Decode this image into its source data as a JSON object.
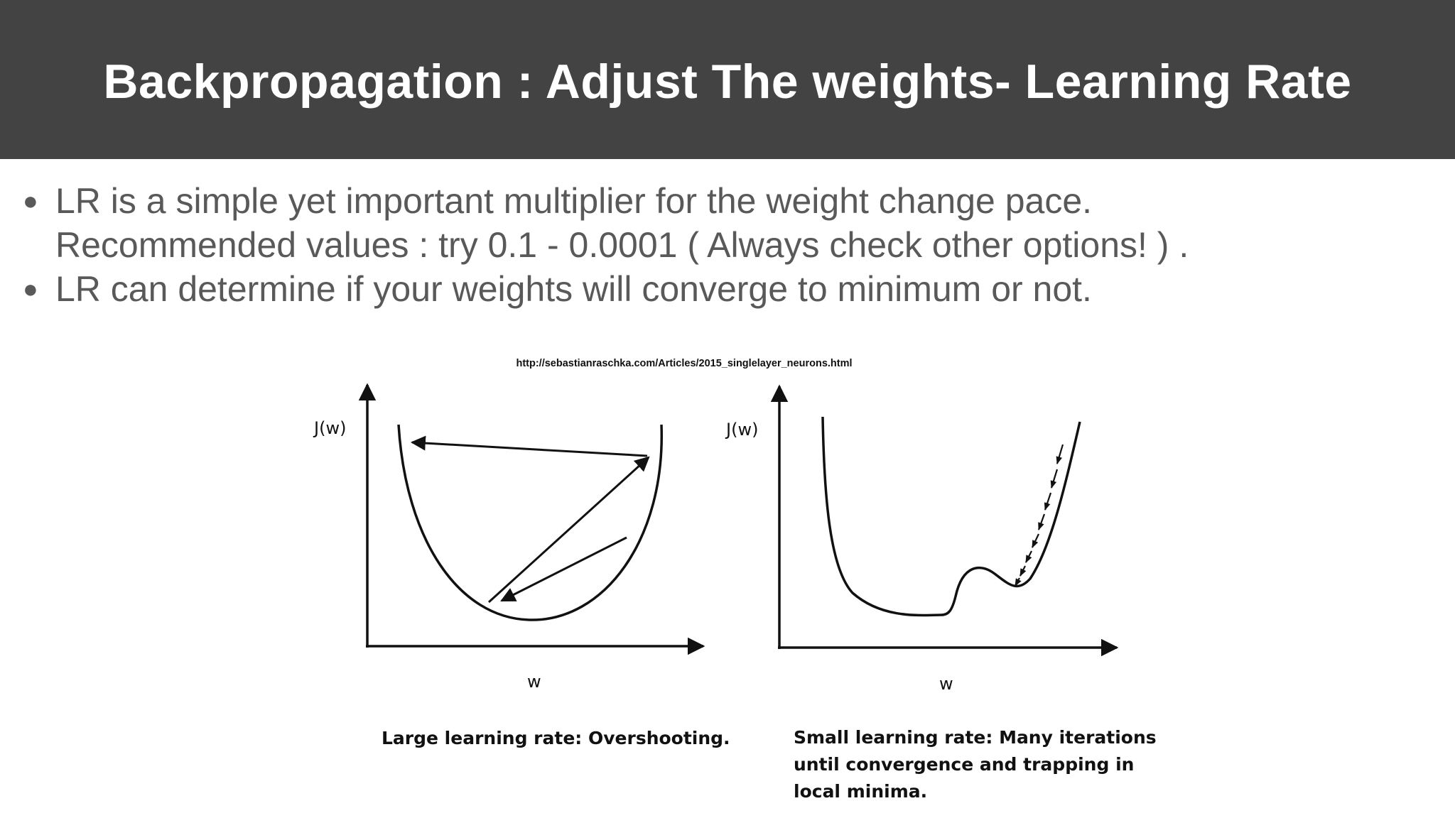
{
  "slide": {
    "title": "Backpropagation : Adjust The weights- Learning Rate",
    "bullets": [
      {
        "lines": [
          "LR is a simple yet important multiplier for the weight change pace.",
          "Recommended values : try 0.1 - 0.0001 ( Always check other options! ) ."
        ]
      },
      {
        "lines": [
          "LR can determine if your weights will converge to minimum or not."
        ]
      }
    ],
    "bullet_glyph": "●"
  },
  "figure": {
    "source_url": "http://sebastianraschka.com/Articles/2015_singlelayer_neurons.html",
    "left_panel": {
      "y_label": "J(w)",
      "x_label": "w",
      "caption_lines": [
        "Large learning rate: Overshooting."
      ]
    },
    "right_panel": {
      "y_label": "J(w)",
      "x_label": "w",
      "caption_lines": [
        "Small learning rate: Many iterations",
        "until convergence and trapping in",
        "local minima."
      ]
    }
  },
  "colors": {
    "header_bg": "#434343",
    "title_text": "#ffffff",
    "body_text": "#595959",
    "figure_ink": "#111111"
  }
}
